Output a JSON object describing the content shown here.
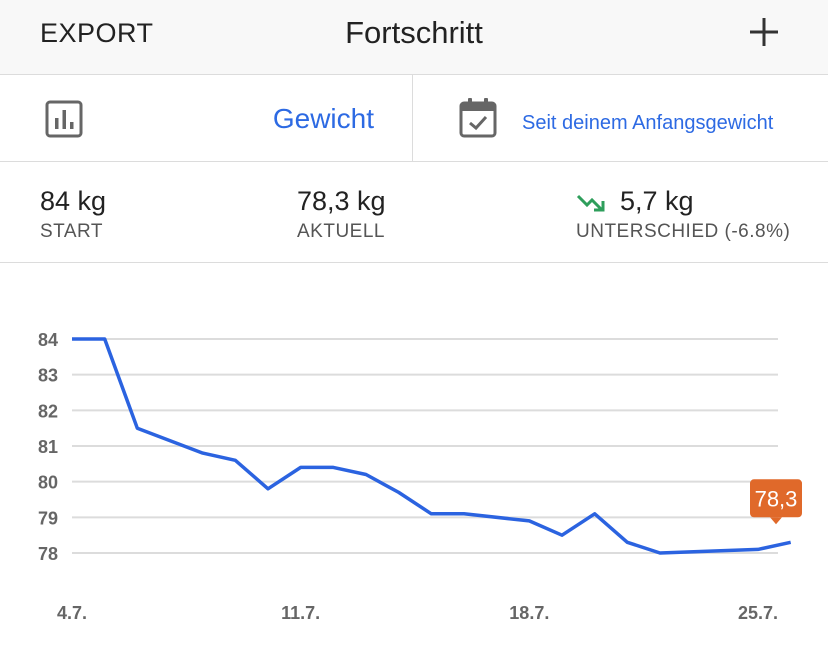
{
  "header": {
    "export_label": "EXPORT",
    "title": "Fortschritt",
    "add_icon": "plus-icon"
  },
  "selector": {
    "metric_icon": "bar-chart-icon",
    "metric_label": "Gewicht",
    "range_icon": "calendar-check-icon",
    "range_label": "Seit deinem Anfangsgewicht"
  },
  "stats": {
    "start_value": "84 kg",
    "start_label": "START",
    "current_value": "78,3 kg",
    "current_label": "AKTUELL",
    "diff_icon": "trend-down-icon",
    "diff_value": "5,7 kg",
    "diff_label": "UNTERSCHIED (-6.8%)"
  },
  "colors": {
    "accent": "#2d6ae3",
    "line": "#2b63e0",
    "tooltip": "#e0692a",
    "trend_down": "#2e9e5b",
    "grid": "#dcdcdc"
  },
  "chart_data": {
    "type": "line",
    "title": "",
    "xlabel": "",
    "ylabel": "",
    "ylim": [
      78,
      84
    ],
    "yticks": [
      "84",
      "83",
      "82",
      "81",
      "80",
      "79",
      "78"
    ],
    "xticks": [
      "4.7.",
      "11.7.",
      "18.7.",
      "25.7."
    ],
    "xlim": [
      "2019-07-04",
      "2019-07-26"
    ],
    "grid": true,
    "series": [
      {
        "points": [
          {
            "x": "2019-07-04",
            "y": 84.0
          },
          {
            "x": "2019-07-05",
            "y": 84.0
          },
          {
            "x": "2019-07-06",
            "y": 81.5
          },
          {
            "x": "2019-07-08",
            "y": 80.8
          },
          {
            "x": "2019-07-09",
            "y": 80.6
          },
          {
            "x": "2019-07-10",
            "y": 79.8
          },
          {
            "x": "2019-07-11",
            "y": 80.4
          },
          {
            "x": "2019-07-12",
            "y": 80.4
          },
          {
            "x": "2019-07-13",
            "y": 80.2
          },
          {
            "x": "2019-07-14",
            "y": 79.7
          },
          {
            "x": "2019-07-15",
            "y": 79.1
          },
          {
            "x": "2019-07-16",
            "y": 79.1
          },
          {
            "x": "2019-07-18",
            "y": 78.9
          },
          {
            "x": "2019-07-19",
            "y": 78.5
          },
          {
            "x": "2019-07-20",
            "y": 79.1
          },
          {
            "x": "2019-07-21",
            "y": 78.3
          },
          {
            "x": "2019-07-22",
            "y": 78.0
          },
          {
            "x": "2019-07-25",
            "y": 78.1
          },
          {
            "x": "2019-07-26",
            "y": 78.3
          }
        ]
      }
    ],
    "last_label": "78,3"
  }
}
